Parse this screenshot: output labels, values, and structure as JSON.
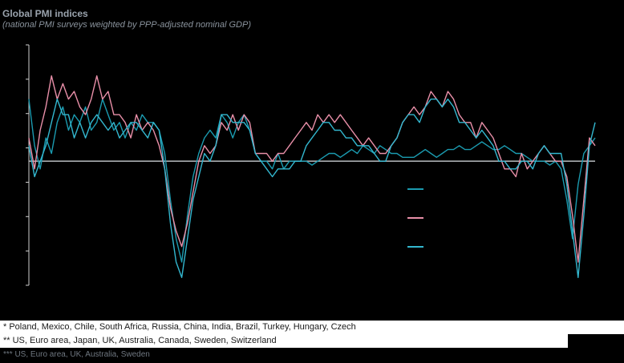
{
  "header": {
    "title": "Global PMI indices",
    "subtitle": "(national PMI surveys weighted  by  PPP-adjusted nominal GDP)"
  },
  "footnotes": [
    "*   Poland, Mexico, Chile, South Africa, Russia, China, India, Brazil, Turkey, Hungary, Czech",
    "**  US, Euro area, Japan, UK, Australia, Canada, Sweden, Switzerland",
    "*** US, Euro area, UK, Australia, Sweden"
  ],
  "colors": {
    "series1": "#1b9bb0",
    "series2": "#e88fa8",
    "series3": "#33b7cf",
    "baseline": "#b8bcc0",
    "axis": "#d0d0d0"
  },
  "chart_data": {
    "type": "line",
    "title": "Global PMI indices",
    "subtitle": "(national PMI surveys weighted  by  PPP-adjusted nominal GDP)",
    "x_index": [
      0,
      2,
      4,
      6,
      8,
      10,
      12,
      14,
      16,
      18,
      20,
      22,
      24,
      26,
      28,
      30,
      32,
      34,
      36,
      38,
      40,
      42,
      44,
      46,
      48,
      50,
      52,
      54,
      56,
      58,
      60,
      62,
      64,
      66,
      68,
      70,
      72,
      74,
      76,
      78,
      80,
      82,
      84,
      86,
      88,
      90,
      92,
      94,
      96,
      98,
      100,
      102,
      104,
      106,
      108,
      110,
      112,
      114,
      116,
      118,
      120,
      122,
      124,
      126,
      128,
      130,
      132,
      134,
      136,
      138,
      140,
      142,
      144,
      146,
      148,
      150,
      152,
      154,
      156,
      158,
      160,
      162,
      164,
      166,
      168,
      170,
      172,
      174,
      176,
      178,
      180,
      182,
      184,
      186,
      188,
      190,
      192,
      194,
      196,
      198,
      200
    ],
    "baseline_y": 50,
    "ylim": [
      34,
      65
    ],
    "grid": false,
    "legend": {
      "position": "middle-right",
      "labels_visible": false
    },
    "series": [
      {
        "values": [
          58,
          52,
          49,
          53,
          51,
          55,
          57,
          54,
          56,
          55,
          57,
          54,
          55,
          58,
          56,
          54,
          55,
          53,
          55,
          54,
          56,
          55,
          55,
          54,
          51,
          45,
          40,
          37,
          43,
          48,
          51,
          53,
          54,
          53,
          56,
          55,
          53,
          55,
          56,
          54,
          51,
          50,
          50,
          49,
          51,
          49,
          50,
          50,
          50,
          50,
          49.5,
          50,
          50.5,
          51,
          51,
          50.5,
          51,
          51.5,
          51,
          52,
          51.5,
          51,
          52,
          51.5,
          51,
          51,
          50.5,
          50.5,
          50.5,
          51,
          51.5,
          51,
          50.5,
          51,
          51.5,
          51.5,
          52,
          51.5,
          51.5,
          52,
          52.5,
          52,
          51.5,
          51.5,
          52,
          51.5,
          51,
          51,
          50.5,
          50,
          50,
          50,
          49.5,
          50,
          49,
          45,
          40,
          47,
          51,
          52,
          53
        ]
      },
      {
        "values": [
          53,
          49,
          54,
          57,
          61,
          58,
          60,
          58,
          59,
          57,
          56,
          58,
          61,
          58,
          59,
          56,
          56,
          55,
          53,
          56,
          54,
          55,
          54,
          52,
          49,
          44,
          41,
          39,
          42,
          46,
          50,
          52,
          51,
          52,
          55,
          54,
          56,
          54,
          56,
          55,
          51,
          51,
          51,
          50,
          51,
          51,
          52,
          53,
          54,
          55,
          54,
          56,
          55,
          56,
          55,
          56,
          55,
          54,
          53,
          52,
          53,
          52,
          51,
          51,
          52,
          53,
          55,
          56,
          57,
          56,
          57,
          59,
          58,
          57,
          59,
          58,
          56,
          55,
          55,
          53,
          55,
          54,
          53,
          51,
          49,
          49,
          48,
          51,
          49,
          50,
          51,
          52,
          51,
          50,
          50,
          48,
          43,
          37,
          45,
          53,
          52
        ]
      },
      {
        "values": [
          52,
          48,
          50,
          52,
          55,
          58,
          56,
          56,
          53,
          55,
          53,
          55,
          56,
          55,
          54,
          55,
          53,
          54,
          55,
          55,
          54,
          53,
          55,
          54,
          49,
          42,
          37,
          35,
          40,
          45,
          48,
          51,
          50,
          52,
          56,
          56,
          55,
          55,
          55,
          54,
          51,
          50,
          49,
          48,
          49,
          49,
          49,
          50,
          50,
          52,
          53,
          54,
          55,
          55,
          54,
          54,
          53,
          53,
          52,
          52,
          52,
          51,
          50,
          50,
          52,
          53,
          55,
          56,
          56,
          55,
          57,
          58,
          58,
          57,
          58,
          57,
          55,
          55,
          54,
          53,
          54,
          53,
          52,
          50,
          50,
          49,
          49,
          50,
          50,
          49,
          51,
          52,
          51,
          51,
          51,
          47,
          41,
          35,
          43,
          52,
          55
        ]
      }
    ]
  }
}
